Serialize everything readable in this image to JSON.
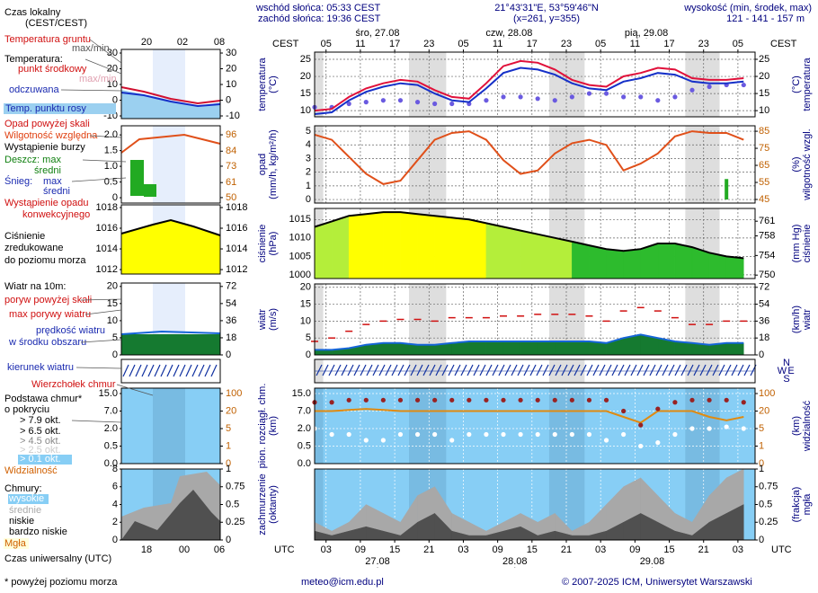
{
  "header": {
    "sunrise": "wschód słońca: 05:33 CEST",
    "sunset": "zachód słońca: 19:36 CEST",
    "coords": "21°43'31\"E, 53°59'46\"N",
    "grid": "(x=261, y=355)",
    "altitude_label": "wysokość (min, środek, max)",
    "altitude": "121 - 141 - 157 m"
  },
  "time": {
    "local_label": "CEST",
    "utc_label": "UTC",
    "xlim": [
      0,
      77
    ],
    "cest_ticks": [
      {
        "value": 2,
        "label": "05"
      },
      {
        "value": 8,
        "label": "11"
      },
      {
        "value": 14,
        "label": "17"
      },
      {
        "value": 20,
        "label": "23"
      },
      {
        "value": 26,
        "label": "05"
      },
      {
        "value": 32,
        "label": "11"
      },
      {
        "value": 38,
        "label": "17"
      },
      {
        "value": 44,
        "label": "23"
      },
      {
        "value": 50,
        "label": "05"
      },
      {
        "value": 56,
        "label": "11"
      },
      {
        "value": 62,
        "label": "17"
      },
      {
        "value": 68,
        "label": "23"
      },
      {
        "value": 74,
        "label": "05"
      }
    ],
    "utc_ticks": [
      {
        "value": 2,
        "label": "03"
      },
      {
        "value": 8,
        "label": "09"
      },
      {
        "value": 14,
        "label": "15"
      },
      {
        "value": 20,
        "label": "21"
      },
      {
        "value": 26,
        "label": "03"
      },
      {
        "value": 32,
        "label": "09"
      },
      {
        "value": 38,
        "label": "15"
      },
      {
        "value": 44,
        "label": "21"
      },
      {
        "value": 50,
        "label": "03"
      },
      {
        "value": 56,
        "label": "09"
      },
      {
        "value": 62,
        "label": "15"
      },
      {
        "value": 68,
        "label": "21"
      },
      {
        "value": 74,
        "label": "03"
      }
    ],
    "top_dates": [
      {
        "value": 11,
        "label": "śro, 27.08"
      },
      {
        "value": 34,
        "label": "czw, 28.08"
      },
      {
        "value": 58,
        "label": "pią, 29.08"
      }
    ],
    "bottom_dates": [
      {
        "value": 11,
        "label": "27.08"
      },
      {
        "value": 35,
        "label": "28.08"
      },
      {
        "value": 59,
        "label": "29.08"
      }
    ]
  },
  "compass": {
    "n": "N",
    "w": "W",
    "e": "E",
    "s": "S"
  },
  "legend": {
    "local_time": [
      "Czas lokalny",
      "(CEST/CEST)"
    ],
    "ground_temp": "Temperatura gruntu",
    "ground_temp_range": "max/min",
    "temp": "Temperatura:",
    "temp_mid": "punkt środkowy",
    "temp_range": "max/min",
    "temp_felt": "odczuwana",
    "dewpoint": "Temp. punktu rosy",
    "precip_over": "Opad powyżej skali",
    "humidity": "Wilgotność względna",
    "storm": "Wystąpienie burzy",
    "rain_max": "Deszcz: max",
    "rain_mean": "średni",
    "snow": "Śnieg:",
    "snow_max": "max",
    "snow_mean": "średni",
    "convective": [
      "Wystąpienie opadu",
      "konwekcyjnego"
    ],
    "pressure": [
      "Ciśnienie",
      "zredukowane",
      "do poziomu morza"
    ],
    "wind": "Wiatr na 10m:",
    "gust_over": "poryw powyżej skali",
    "gust_max": "max porywy wiatru",
    "wind_speed": [
      "prędkość wiatru",
      "w środku obszaru"
    ],
    "wind_dir": "kierunek wiatru",
    "cloud_top": "Wierzchołek chmur",
    "cloud_base": [
      "Podstawa chmur*",
      "o pokryciu"
    ],
    "cover": [
      "> 7.9 okt.",
      "> 6.5 okt.",
      "> 4.5 okt.",
      "> 2.5 okt.",
      "> 0.1 okt."
    ],
    "visibility": "Widzialność",
    "clouds": "Chmury:",
    "cloud_layers": [
      "wysokie",
      "średnie",
      "niskie",
      "bardzo niskie"
    ],
    "fog": "Mgła",
    "utc_time": "Czas uniwersalny (UTC)",
    "mini_top": [
      "20",
      "02",
      "08"
    ],
    "mini_bottom": [
      "18",
      "00",
      "06"
    ]
  },
  "legend_panels": [
    {
      "ylim": [
        -11.7,
        32.3
      ],
      "yticks": [
        -10,
        0,
        10,
        20,
        30
      ],
      "y2lim": [
        -11.7,
        32.3
      ],
      "y2ticks": [
        -10,
        0,
        10,
        20,
        30
      ]
    },
    {
      "ylim": [
        -0.17,
        2.29
      ],
      "yticks": [
        0,
        0.5,
        {
          "value": 1,
          "label": "1.0"
        },
        1.5,
        {
          "value": 2,
          "label": "2.0"
        }
      ],
      "y2lim": [
        46,
        102.6
      ],
      "y2ticks": [
        50,
        61,
        73,
        84,
        96
      ]
    },
    {
      "ylim": [
        1011.57,
        1018.26
      ],
      "yticks": [
        1012,
        1014,
        1016,
        1018
      ],
      "y2lim": [
        1011.57,
        1018.26
      ],
      "y2ticks": [
        1012,
        1014,
        1016,
        1018
      ]
    },
    {
      "ylim": [
        0,
        21
      ],
      "yticks": [
        0,
        5,
        10,
        15,
        20
      ],
      "y2lim": [
        0,
        75.6
      ],
      "y2ticks": [
        0,
        18,
        36,
        54,
        72
      ]
    },
    {
      "yscale": "tick-spaced",
      "ylim": [
        0,
        15
      ],
      "yticks": [
        {
          "value": 0,
          "label": "0.0"
        },
        0.5,
        {
          "value": 2,
          "label": "2.0"
        },
        {
          "value": 7,
          "label": "7.0"
        },
        {
          "value": 15,
          "label": "15.0"
        }
      ],
      "y2lim": [
        0,
        100
      ],
      "y2ticks": [
        0,
        1,
        5,
        20,
        100
      ]
    },
    {
      "ylim": [
        0,
        8
      ],
      "yticks": [
        0,
        2,
        4,
        6,
        8
      ],
      "y2lim": [
        0,
        1
      ],
      "y2ticks": [
        0,
        0.25,
        0.5,
        0.75,
        1
      ]
    }
  ],
  "chart_data": [
    {
      "type": "line",
      "ylabel": [
        "temperatura",
        "(°C)"
      ],
      "y2label": [
        "(°C)",
        "temperatura"
      ],
      "ylim": [
        8.2,
        27.1
      ],
      "yticks": [
        10,
        15,
        20,
        25
      ],
      "y2lim": [
        8.2,
        27.1
      ],
      "y2ticks": [
        10,
        15,
        20,
        25
      ],
      "grid": true,
      "x": [
        0,
        3,
        6,
        9,
        12,
        15,
        18,
        21,
        24,
        27,
        30,
        33,
        36,
        39,
        42,
        45,
        48,
        51,
        54,
        57,
        60,
        63,
        66,
        69,
        72,
        75
      ],
      "series": [
        {
          "type": "scatter",
          "color": "#6a5ae0",
          "values": [
            11,
            11,
            12,
            12.5,
            13,
            13,
            12.5,
            12,
            12,
            12,
            13,
            14,
            14,
            13.5,
            13,
            14,
            15,
            15,
            14,
            14,
            13,
            14,
            16,
            17,
            17.5,
            17.5
          ]
        },
        {
          "type": "line",
          "color": "#1530c8",
          "values": [
            9,
            9.5,
            13,
            15.5,
            17,
            18,
            17.5,
            15,
            13,
            12.5,
            16.5,
            21,
            22.5,
            22,
            20.5,
            18,
            16.5,
            16,
            18.5,
            19.5,
            21,
            20.5,
            18.5,
            18,
            18,
            18.5
          ]
        },
        {
          "type": "line",
          "color": "#e0103a",
          "values": [
            10,
            10.5,
            14,
            16.5,
            18,
            19,
            18.5,
            16,
            14,
            13.5,
            18,
            23,
            24.5,
            24,
            22,
            19,
            17.5,
            17,
            20,
            21,
            22.5,
            22,
            19.5,
            19,
            19,
            19.5
          ]
        }
      ]
    },
    {
      "type": "line",
      "ylabel": [
        "opad",
        "(mm/h, kg/m²/h)"
      ],
      "y2label": [
        "(%)",
        "wilgotność wzgl."
      ],
      "ylim": [
        -0.26,
        5.4
      ],
      "yticks": [
        0,
        1,
        2,
        3,
        4,
        5
      ],
      "y2lim": [
        42.9,
        88.2
      ],
      "y2ticks": [
        45,
        55,
        65,
        75,
        85
      ],
      "grid": true,
      "x": [
        0,
        3,
        6,
        9,
        12,
        15,
        18,
        21,
        24,
        27,
        30,
        33,
        36,
        39,
        42,
        45,
        48,
        51,
        54,
        57,
        60,
        63,
        66,
        69,
        72,
        75
      ],
      "series": [
        {
          "type": "bar",
          "color": "#22aa22",
          "values": [
            0,
            0,
            0,
            0,
            0,
            0,
            0,
            0,
            0,
            0,
            0,
            0,
            0,
            0,
            0,
            0,
            0,
            0,
            0,
            0,
            0,
            0,
            0,
            0,
            1.5,
            0
          ]
        },
        {
          "type": "line",
          "axis": "y2",
          "color": "#e0501a",
          "values": [
            83,
            80,
            70,
            60,
            54,
            56,
            68,
            80,
            84,
            85,
            80,
            68,
            60,
            62,
            72,
            78,
            80,
            77,
            62,
            66,
            72,
            82,
            85,
            84,
            84,
            80
          ]
        }
      ]
    },
    {
      "type": "area",
      "ylabel": [
        "ciśnienie",
        "(hPa)"
      ],
      "y2label": [
        "(mm Hg)",
        "ciśnienie"
      ],
      "ylim": [
        999,
        1018
      ],
      "yticks": [
        1000,
        1005,
        1010,
        1015
      ],
      "y2lim": [
        749.3,
        763.6
      ],
      "y2ticks": [
        750,
        754,
        758,
        761
      ],
      "grid": true,
      "x": [
        0,
        3,
        6,
        9,
        12,
        15,
        18,
        21,
        24,
        27,
        30,
        33,
        36,
        39,
        42,
        45,
        48,
        51,
        54,
        57,
        60,
        63,
        66,
        69,
        72,
        75
      ],
      "series": [
        {
          "type": "area",
          "color": "#2dbb2d",
          "line_color": "#000000",
          "bands": [
            {
              "above": 1015,
              "color": "#ffff00"
            },
            {
              "above": 1010,
              "color": "#b4ee3a"
            }
          ],
          "values": [
            1013,
            1014.5,
            1016,
            1016.5,
            1017,
            1017,
            1016.5,
            1016,
            1015.5,
            1015,
            1014,
            1013,
            1012,
            1011,
            1010,
            1009,
            1008,
            1007,
            1006.5,
            1007,
            1008.5,
            1008.5,
            1007.5,
            1006,
            1005,
            1004.5
          ]
        }
      ]
    },
    {
      "type": "line",
      "ylabel": [
        "wiatr",
        "(m/s)"
      ],
      "y2label": [
        "(km/h)",
        "wiatr"
      ],
      "ylim": [
        0,
        21
      ],
      "yticks": [
        0,
        5,
        10,
        15,
        20
      ],
      "y2lim": [
        0,
        75.6
      ],
      "y2ticks": [
        0,
        18,
        36,
        54,
        72
      ],
      "grid": true,
      "x": [
        0,
        3,
        6,
        9,
        12,
        15,
        18,
        21,
        24,
        27,
        30,
        33,
        36,
        39,
        42,
        45,
        48,
        51,
        54,
        57,
        60,
        63,
        66,
        69,
        72,
        75
      ],
      "series": [
        {
          "type": "area",
          "color": "#157a30",
          "line_color": "#1565d8",
          "values": [
            1.5,
            1.5,
            2,
            3,
            3.5,
            3.5,
            3,
            3,
            3.5,
            4,
            4,
            4,
            4,
            4,
            4,
            4,
            4,
            3.5,
            5,
            6,
            5,
            4,
            3.5,
            3,
            3.5,
            3.5
          ]
        },
        {
          "type": "dash",
          "color": "#d01010",
          "values": [
            4,
            5,
            7,
            9,
            10,
            10.5,
            10.5,
            10,
            11,
            11,
            11,
            11.5,
            11.5,
            12,
            12,
            12,
            11.5,
            10,
            13,
            14,
            13,
            11,
            9,
            9,
            10,
            10
          ]
        }
      ]
    },
    {
      "type": "scatter",
      "ylabel": [
        "pion. rozciągł. chm.",
        "(km)"
      ],
      "y2label": [
        "(km)",
        "widzialność"
      ],
      "yscale": "tick-spaced",
      "background": "#87cef5",
      "ylim": [
        0,
        15
      ],
      "yticks": [
        {
          "value": 0,
          "label": "0.0"
        },
        0.5,
        {
          "value": 2,
          "label": "2.0"
        },
        {
          "value": 7,
          "label": "7.0"
        },
        {
          "value": 15,
          "label": "15.0"
        }
      ],
      "y2lim": [
        0,
        100
      ],
      "y2ticks": [
        0,
        1,
        5,
        20,
        100
      ],
      "grid": true,
      "x": [
        0,
        3,
        6,
        9,
        12,
        15,
        18,
        21,
        24,
        27,
        30,
        33,
        36,
        39,
        42,
        45,
        48,
        51,
        54,
        57,
        60,
        63,
        66,
        69,
        72,
        75
      ],
      "series": [
        {
          "type": "line",
          "axis": "y2",
          "color": "#e08a10",
          "values": [
            20,
            20,
            25,
            30,
            25,
            20,
            20,
            20,
            20,
            20,
            20,
            20,
            20,
            20,
            20,
            20,
            20,
            20,
            15,
            10,
            20,
            20,
            20,
            15,
            12,
            15
          ]
        },
        {
          "type": "scatter",
          "color": "#992222",
          "values": [
            11,
            11,
            12,
            12,
            12,
            12,
            12,
            12,
            12,
            12,
            12,
            12,
            12,
            12,
            12,
            12,
            12,
            12,
            7,
            3,
            8,
            11,
            12,
            12,
            12,
            11
          ]
        },
        {
          "type": "scatter",
          "color": "#ffffff",
          "values": [
            2,
            1.5,
            1.5,
            1,
            1,
            1.5,
            1.5,
            1.5,
            1,
            1.5,
            1.5,
            1.5,
            1.5,
            1.5,
            1.5,
            1.5,
            1.5,
            1,
            1.5,
            0.5,
            0.8,
            1.5,
            2,
            2,
            2.5,
            2
          ]
        }
      ]
    },
    {
      "type": "area",
      "ylabel": [
        "zachmurzenie",
        "(oktanty)"
      ],
      "y2label": [
        "(frakcja)",
        "mgła"
      ],
      "background": "#87cef5",
      "ylim": [
        0,
        8
      ],
      "y2lim": [
        0,
        1
      ],
      "y2ticks": [
        0,
        0.25,
        0.5,
        0.75,
        1
      ],
      "grid": true,
      "x": [
        0,
        3,
        6,
        9,
        12,
        15,
        18,
        21,
        24,
        27,
        30,
        33,
        36,
        39,
        42,
        45,
        48,
        51,
        54,
        57,
        60,
        63,
        66,
        69,
        72,
        75
      ],
      "series": [
        {
          "type": "area",
          "color": "#a8a8a8",
          "values": [
            2,
            1,
            2,
            4,
            3,
            2,
            5,
            6,
            3,
            2,
            1,
            2,
            3,
            2,
            3,
            1,
            2,
            4,
            6,
            7,
            5,
            3,
            2,
            5,
            7,
            8
          ]
        },
        {
          "type": "area",
          "color": "#505050",
          "values": [
            1,
            0.5,
            1,
            1.5,
            1,
            0.5,
            2,
            3,
            1,
            0.5,
            0.5,
            1,
            1.5,
            0.5,
            1,
            0.5,
            0.5,
            1,
            2,
            3,
            2,
            1,
            0.5,
            2,
            3,
            4
          ]
        }
      ]
    }
  ],
  "footer": {
    "note": "* powyżej poziomu morza",
    "email": "meteo@icm.edu.pl",
    "copyright": "© 2007-2025 ICM, Uniwersytet Warszawski"
  }
}
